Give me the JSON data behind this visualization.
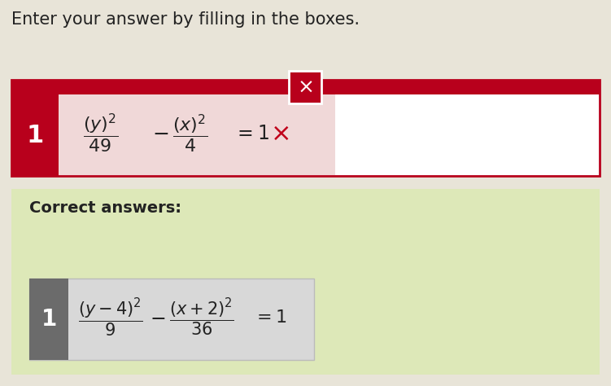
{
  "bg_color": "#e8e4d8",
  "title_text": "Enter your answer by filling in the boxes.",
  "title_color": "#222222",
  "title_fontsize": 15,
  "top_bar_color": "#b8001c",
  "x_button_color": "#b8001c",
  "answer_box_bg": "#f0d8d8",
  "answer_box_border": "#b8001c",
  "answer_number_bg": "#b8001c",
  "answer_wrong_color": "#c0001a",
  "correct_section_bg": "#dde8b8",
  "correct_label_color": "#222222",
  "correct_number_bg": "#6b6b6b",
  "correct_box_bg": "#d8d8d8",
  "correct_box_border": "#bbbbbb",
  "math_color": "#222222"
}
